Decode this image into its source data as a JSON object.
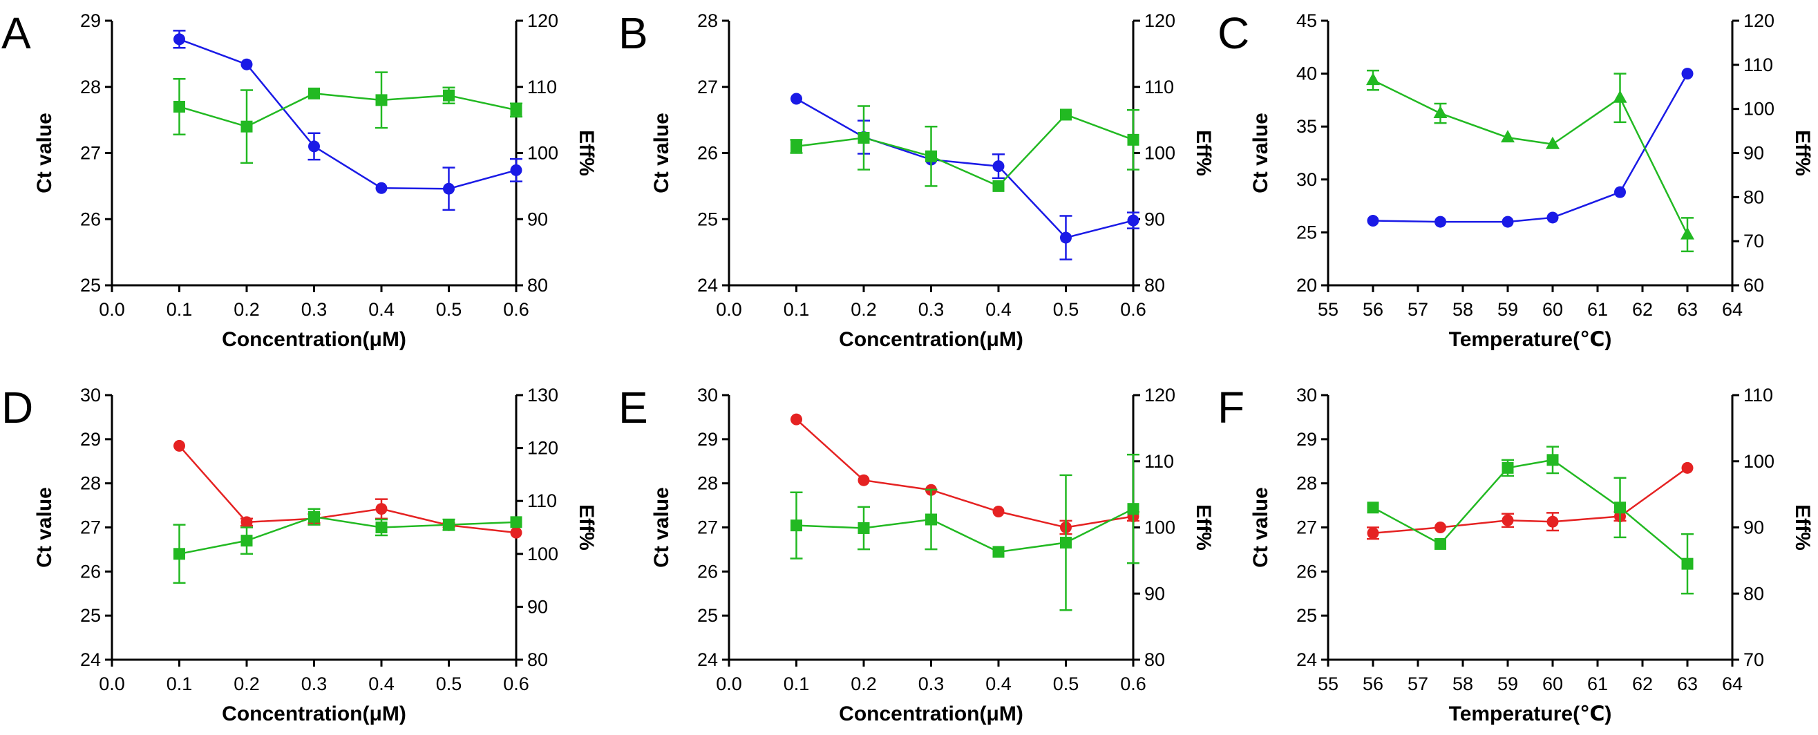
{
  "chart_data": [
    {
      "panel": "A",
      "type": "line",
      "xlabel": "Concentration(μM)",
      "ylabel": "Ct value",
      "y2label": "Eff%",
      "xlim": [
        0.0,
        0.6
      ],
      "xticks": [
        0.0,
        0.1,
        0.2,
        0.3,
        0.4,
        0.5,
        0.6
      ],
      "xtick_labels": [
        "0.0",
        "0.1",
        "0.2",
        "0.3",
        "0.4",
        "0.5",
        "0.6"
      ],
      "ylim": [
        25,
        29
      ],
      "yticks": [
        25,
        26,
        27,
        28,
        29
      ],
      "y2lim": [
        80,
        120
      ],
      "y2ticks": [
        80,
        90,
        100,
        110,
        120
      ],
      "series": [
        {
          "name": "Ct value",
          "axis": "left",
          "color": "#1a1ae6",
          "marker": "circle",
          "x": [
            0.1,
            0.2,
            0.3,
            0.4,
            0.5,
            0.6
          ],
          "values": [
            28.72,
            28.34,
            27.1,
            26.47,
            26.46,
            26.74
          ],
          "errors": [
            0.13,
            0.0,
            0.2,
            0.0,
            0.32,
            0.17
          ]
        },
        {
          "name": "Eff%",
          "axis": "right",
          "color": "#22b922",
          "marker": "square",
          "x": [
            0.1,
            0.2,
            0.3,
            0.4,
            0.5,
            0.6
          ],
          "values": [
            107,
            104,
            109,
            108,
            108.7,
            106.5
          ],
          "errors": [
            4.2,
            5.5,
            0.0,
            4.2,
            1.2,
            1.0
          ]
        }
      ]
    },
    {
      "panel": "B",
      "type": "line",
      "xlabel": "Concentration(μM)",
      "ylabel": "Ct value",
      "y2label": "Eff%",
      "xlim": [
        0.0,
        0.6
      ],
      "xticks": [
        0.0,
        0.1,
        0.2,
        0.3,
        0.4,
        0.5,
        0.6
      ],
      "xtick_labels": [
        "0.0",
        "0.1",
        "0.2",
        "0.3",
        "0.4",
        "0.5",
        "0.6"
      ],
      "ylim": [
        24,
        28
      ],
      "yticks": [
        24,
        25,
        26,
        27,
        28
      ],
      "y2lim": [
        80,
        120
      ],
      "y2ticks": [
        80,
        90,
        100,
        110,
        120
      ],
      "series": [
        {
          "name": "Ct value",
          "axis": "left",
          "color": "#1a1ae6",
          "marker": "circle",
          "x": [
            0.1,
            0.2,
            0.3,
            0.4,
            0.5,
            0.6
          ],
          "values": [
            26.82,
            26.24,
            25.9,
            25.8,
            24.72,
            24.98
          ],
          "errors": [
            0.0,
            0.25,
            0.0,
            0.18,
            0.33,
            0.12
          ]
        },
        {
          "name": "Eff%",
          "axis": "right",
          "color": "#22b922",
          "marker": "square",
          "x": [
            0.1,
            0.2,
            0.3,
            0.4,
            0.5,
            0.6
          ],
          "values": [
            101,
            102.3,
            99.5,
            95,
            105.8,
            102
          ],
          "errors": [
            1.0,
            4.8,
            4.5,
            0.0,
            0.0,
            4.5
          ]
        }
      ]
    },
    {
      "panel": "C",
      "type": "line",
      "xlabel": "Temperature(℃)",
      "ylabel": "Ct value",
      "y2label": "Eff%",
      "xlim": [
        55,
        64
      ],
      "xticks": [
        55,
        56,
        57,
        58,
        59,
        60,
        61,
        62,
        63,
        64
      ],
      "xtick_labels": [
        "55",
        "56",
        "57",
        "58",
        "59",
        "60",
        "61",
        "62",
        "63",
        "64"
      ],
      "ylim": [
        20,
        45
      ],
      "yticks": [
        20,
        25,
        30,
        35,
        40,
        45
      ],
      "y2lim": [
        60,
        120
      ],
      "y2ticks": [
        60,
        70,
        80,
        90,
        100,
        110,
        120
      ],
      "series": [
        {
          "name": "Ct value",
          "axis": "left",
          "color": "#1a1ae6",
          "marker": "circle",
          "x": [
            56,
            57.5,
            59,
            60,
            61.5,
            63
          ],
          "values": [
            26.1,
            26.0,
            26.0,
            26.4,
            28.8,
            40.0
          ],
          "errors": [
            0,
            0,
            0,
            0,
            0,
            0
          ]
        },
        {
          "name": "Eff%",
          "axis": "right",
          "color": "#22b922",
          "marker": "triangle",
          "x": [
            56,
            57.5,
            59,
            60,
            61.5,
            63
          ],
          "values": [
            106.5,
            99,
            93.5,
            92,
            102.5,
            71.5
          ],
          "errors": [
            2.2,
            2.2,
            0.0,
            0.0,
            5.5,
            3.8
          ]
        }
      ]
    },
    {
      "panel": "D",
      "type": "line",
      "xlabel": "Concentration(μM)",
      "ylabel": "Ct value",
      "y2label": "Eff%",
      "xlim": [
        0.0,
        0.6
      ],
      "xticks": [
        0.0,
        0.1,
        0.2,
        0.3,
        0.4,
        0.5,
        0.6
      ],
      "xtick_labels": [
        "0.0",
        "0.1",
        "0.2",
        "0.3",
        "0.4",
        "0.5",
        "0.6"
      ],
      "ylim": [
        24,
        30
      ],
      "yticks": [
        24,
        25,
        26,
        27,
        28,
        29,
        30
      ],
      "y2lim": [
        80,
        130
      ],
      "y2ticks": [
        80,
        90,
        100,
        110,
        120,
        130
      ],
      "series": [
        {
          "name": "Ct value",
          "axis": "left",
          "color": "#e52222",
          "marker": "circle",
          "x": [
            0.1,
            0.2,
            0.3,
            0.4,
            0.5,
            0.6
          ],
          "values": [
            28.85,
            27.12,
            27.2,
            27.42,
            27.05,
            26.88
          ],
          "errors": [
            0.0,
            0.08,
            0.1,
            0.22,
            0.05,
            0.0
          ]
        },
        {
          "name": "Eff%",
          "axis": "right",
          "color": "#22b922",
          "marker": "square",
          "x": [
            0.1,
            0.2,
            0.3,
            0.4,
            0.5,
            0.6
          ],
          "values": [
            100,
            102.5,
            107,
            105,
            105.5,
            106
          ],
          "errors": [
            5.5,
            2.5,
            1.5,
            1.5,
            1.0,
            0.0
          ]
        }
      ]
    },
    {
      "panel": "E",
      "type": "line",
      "xlabel": "Concentration(μM)",
      "ylabel": "Ct value",
      "y2label": "Eff%",
      "xlim": [
        0.0,
        0.6
      ],
      "xticks": [
        0.0,
        0.1,
        0.2,
        0.3,
        0.4,
        0.5,
        0.6
      ],
      "xtick_labels": [
        "0.0",
        "0.1",
        "0.2",
        "0.3",
        "0.4",
        "0.5",
        "0.6"
      ],
      "ylim": [
        24,
        30
      ],
      "yticks": [
        24,
        25,
        26,
        27,
        28,
        29,
        30
      ],
      "y2lim": [
        80,
        120
      ],
      "y2ticks": [
        80,
        90,
        100,
        110,
        120
      ],
      "series": [
        {
          "name": "Ct value",
          "axis": "left",
          "color": "#e52222",
          "marker": "circle",
          "x": [
            0.1,
            0.2,
            0.3,
            0.4,
            0.5,
            0.6
          ],
          "values": [
            29.45,
            28.07,
            27.85,
            27.36,
            27.0,
            27.25
          ],
          "errors": [
            0.0,
            0.0,
            0.0,
            0.0,
            0.15,
            0.1
          ]
        },
        {
          "name": "Eff%",
          "axis": "right",
          "color": "#22b922",
          "marker": "square",
          "x": [
            0.1,
            0.2,
            0.3,
            0.4,
            0.5,
            0.6
          ],
          "values": [
            100.3,
            99.9,
            101.2,
            96.3,
            97.7,
            102.8
          ],
          "errors": [
            5.0,
            3.2,
            4.5,
            0.0,
            10.2,
            8.2
          ]
        }
      ]
    },
    {
      "panel": "F",
      "type": "line",
      "xlabel": "Temperature(℃)",
      "ylabel": "Ct value",
      "y2label": "Eff%",
      "xlim": [
        55,
        64
      ],
      "xticks": [
        55,
        56,
        57,
        58,
        59,
        60,
        61,
        62,
        63,
        64
      ],
      "xtick_labels": [
        "55",
        "56",
        "57",
        "58",
        "59",
        "60",
        "61",
        "62",
        "63",
        "64"
      ],
      "ylim": [
        24,
        30
      ],
      "yticks": [
        24,
        25,
        26,
        27,
        28,
        29,
        30
      ],
      "y2lim": [
        70,
        110
      ],
      "y2ticks": [
        70,
        80,
        90,
        100,
        110
      ],
      "series": [
        {
          "name": "Ct value",
          "axis": "left",
          "color": "#e52222",
          "marker": "circle",
          "x": [
            56,
            57.5,
            59,
            60,
            61.5,
            63
          ],
          "values": [
            26.87,
            27.0,
            27.16,
            27.13,
            27.25,
            28.35
          ],
          "errors": [
            0.13,
            0.0,
            0.15,
            0.2,
            0.1,
            0.0
          ]
        },
        {
          "name": "Eff%",
          "axis": "right",
          "color": "#22b922",
          "marker": "square",
          "x": [
            56,
            57.5,
            59,
            60,
            61.5,
            63
          ],
          "values": [
            93,
            87.5,
            99,
            100.2,
            93,
            84.5
          ],
          "errors": [
            0.0,
            0.0,
            1.2,
            2.0,
            4.5,
            4.5
          ]
        }
      ]
    }
  ]
}
